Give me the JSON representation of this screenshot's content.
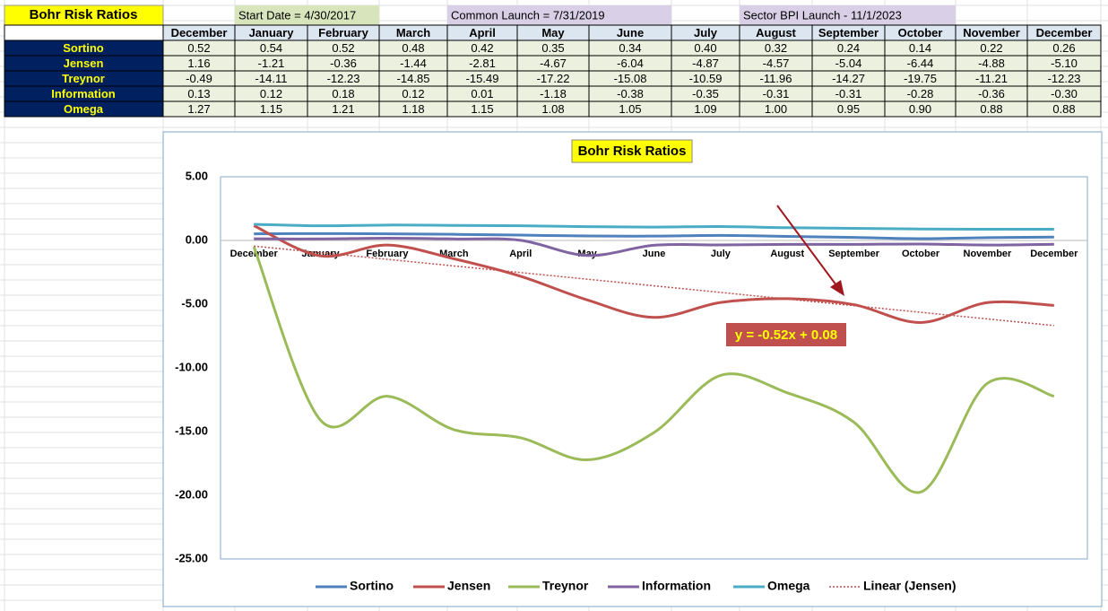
{
  "sheet": {
    "title": "Bohr Risk Ratios",
    "notes": [
      "Start Date = 4/30/2017",
      "Common Launch = 7/31/2019",
      "Sector BPI Launch - 11/1/2023"
    ]
  },
  "table": {
    "columns": [
      "December",
      "January",
      "February",
      "March",
      "April",
      "May",
      "June",
      "July",
      "August",
      "September",
      "October",
      "November",
      "December"
    ],
    "rows": [
      {
        "label": "Sortino",
        "values": [
          "0.52",
          "0.54",
          "0.52",
          "0.48",
          "0.42",
          "0.35",
          "0.34",
          "0.40",
          "0.32",
          "0.24",
          "0.14",
          "0.22",
          "0.26"
        ]
      },
      {
        "label": "Jensen",
        "values": [
          "1.16",
          "-1.21",
          "-0.36",
          "-1.44",
          "-2.81",
          "-4.67",
          "-6.04",
          "-4.87",
          "-4.57",
          "-5.04",
          "-6.44",
          "-4.88",
          "-5.10"
        ]
      },
      {
        "label": "Treynor",
        "values": [
          "-0.49",
          "-14.11",
          "-12.23",
          "-14.85",
          "-15.49",
          "-17.22",
          "-15.08",
          "-10.59",
          "-11.96",
          "-14.27",
          "-19.75",
          "-11.21",
          "-12.23"
        ]
      },
      {
        "label": "Information",
        "values": [
          "0.13",
          "0.12",
          "0.18",
          "0.12",
          "0.01",
          "-1.18",
          "-0.38",
          "-0.35",
          "-0.31",
          "-0.31",
          "-0.28",
          "-0.36",
          "-0.30"
        ]
      },
      {
        "label": "Omega",
        "values": [
          "1.27",
          "1.15",
          "1.21",
          "1.18",
          "1.15",
          "1.08",
          "1.05",
          "1.09",
          "1.00",
          "0.95",
          "0.90",
          "0.88",
          "0.88"
        ]
      }
    ]
  },
  "chart_data": {
    "type": "line",
    "title": "Bohr Risk Ratios",
    "categories": [
      "December",
      "January",
      "February",
      "March",
      "April",
      "May",
      "June",
      "July",
      "August",
      "September",
      "October",
      "November",
      "December"
    ],
    "series": [
      {
        "name": "Sortino",
        "color": "#4f81bd",
        "values": [
          0.52,
          0.54,
          0.52,
          0.48,
          0.42,
          0.35,
          0.34,
          0.4,
          0.32,
          0.24,
          0.14,
          0.22,
          0.26
        ]
      },
      {
        "name": "Jensen",
        "color": "#c0504d",
        "values": [
          1.16,
          -1.21,
          -0.36,
          -1.44,
          -2.81,
          -4.67,
          -6.04,
          -4.87,
          -4.57,
          -5.04,
          -6.44,
          -4.88,
          -5.1
        ]
      },
      {
        "name": "Treynor",
        "color": "#9bbb59",
        "values": [
          -0.49,
          -14.11,
          -12.23,
          -14.85,
          -15.49,
          -17.22,
          -15.08,
          -10.59,
          -11.96,
          -14.27,
          -19.75,
          -11.21,
          -12.23
        ]
      },
      {
        "name": "Information",
        "color": "#8064a2",
        "values": [
          0.13,
          0.12,
          0.18,
          0.12,
          0.01,
          -1.18,
          -0.38,
          -0.35,
          -0.31,
          -0.31,
          -0.28,
          -0.36,
          -0.3
        ]
      },
      {
        "name": "Omega",
        "color": "#4bacc6",
        "values": [
          1.27,
          1.15,
          1.21,
          1.18,
          1.15,
          1.08,
          1.05,
          1.09,
          1.0,
          0.95,
          0.9,
          0.88,
          0.88
        ]
      }
    ],
    "trendline": {
      "name": "Linear (Jensen)",
      "color": "#c0504d",
      "slope": -0.52,
      "intercept": 0.08,
      "label": "y = -0.52x + 0.08"
    },
    "ylim": [
      -25,
      5
    ],
    "yticks": [
      {
        "value": -25,
        "label": "-25.00"
      },
      {
        "value": -20,
        "label": "-20.00"
      },
      {
        "value": -15,
        "label": "-15.00"
      },
      {
        "value": -10,
        "label": "-10.00"
      },
      {
        "value": -5,
        "label": "-5.00"
      },
      {
        "value": 0,
        "label": "0.00"
      },
      {
        "value": 5,
        "label": "5.00"
      }
    ],
    "grid": false,
    "legend": "bottom"
  }
}
